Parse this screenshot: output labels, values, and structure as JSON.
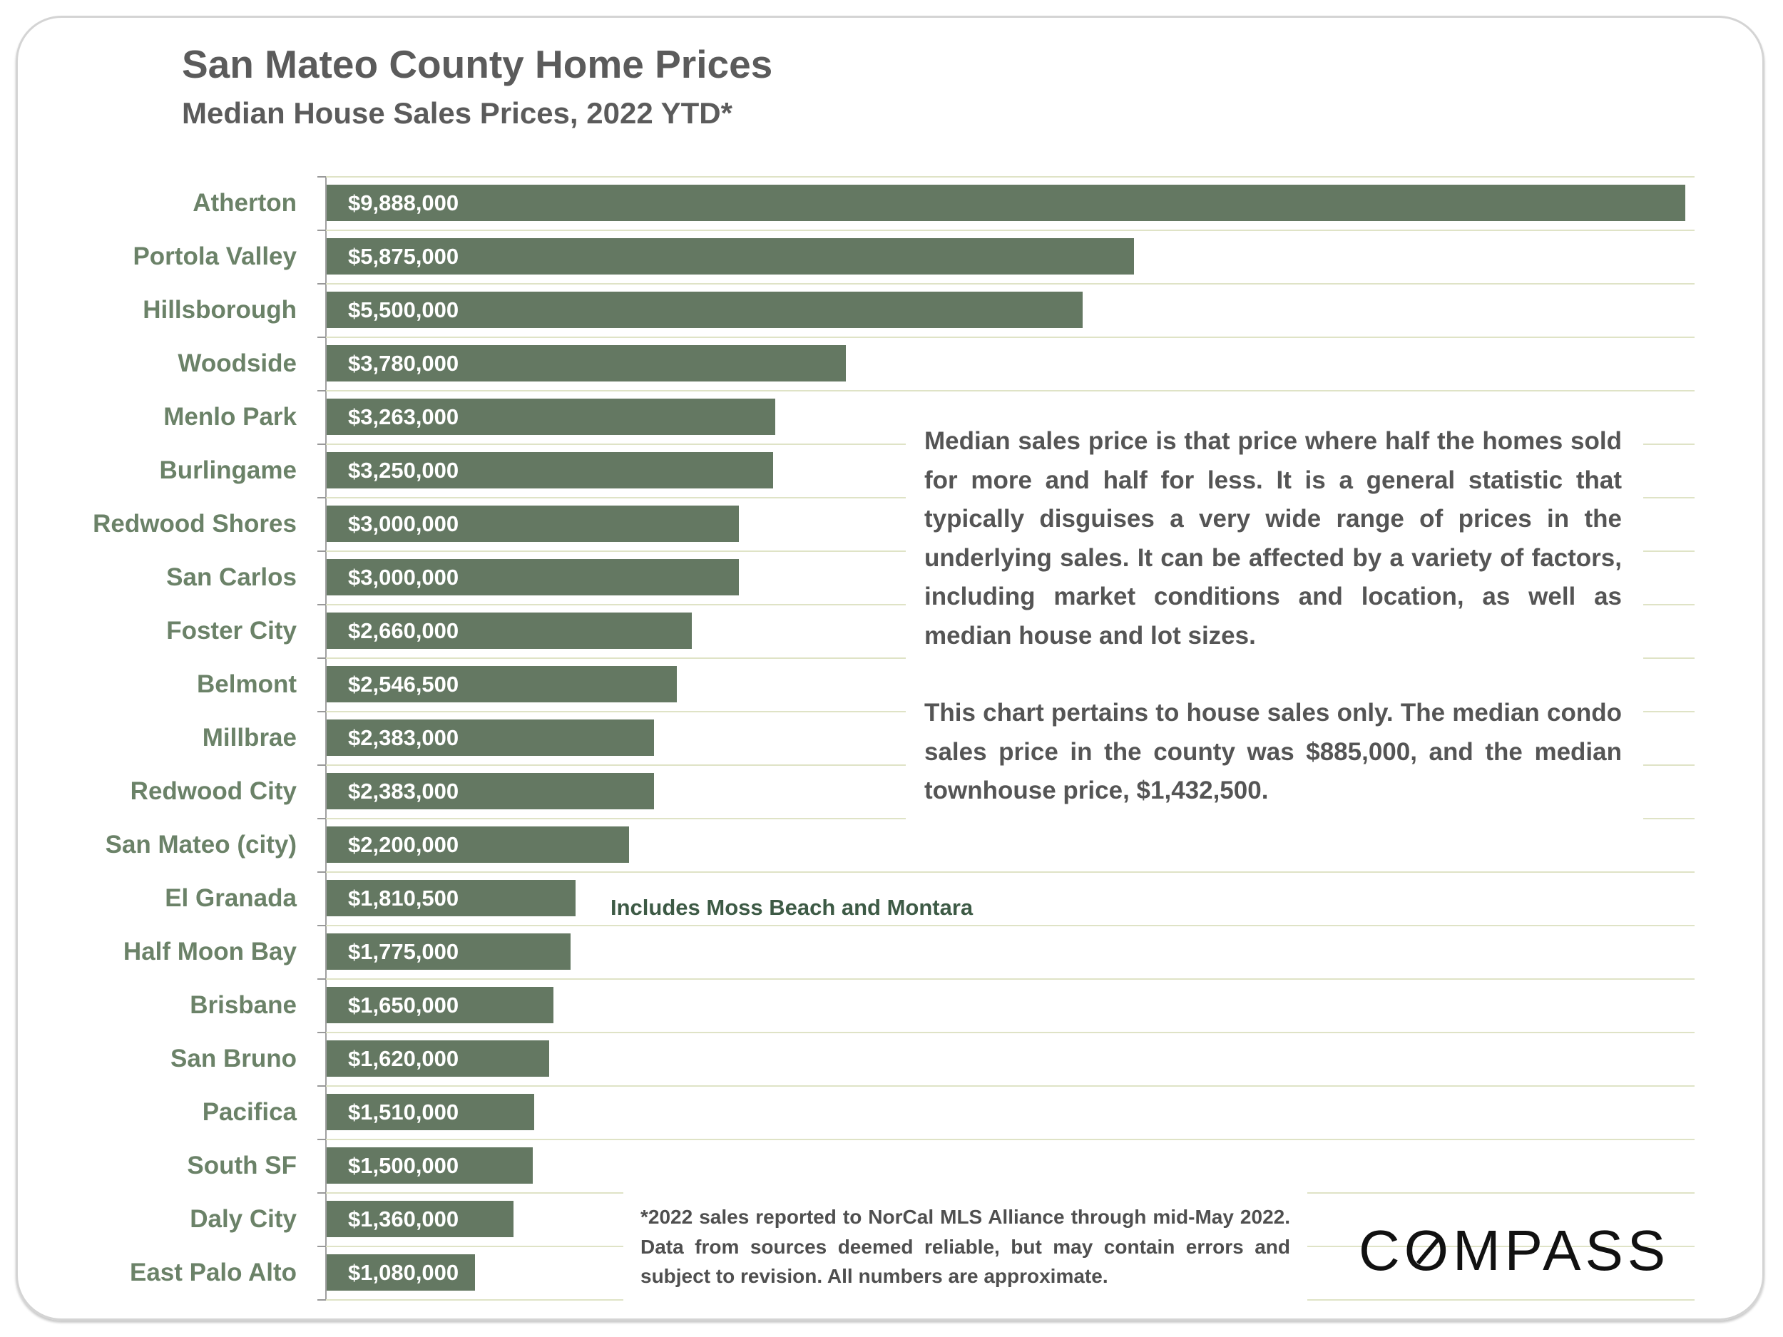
{
  "chart_data": {
    "type": "bar",
    "orientation": "horizontal",
    "title": "San Mateo County Home Prices",
    "subtitle": "Median House Sales Prices, 2022 YTD*",
    "xlabel": "",
    "ylabel": "",
    "xlim": [
      0,
      9888000
    ],
    "grid": true,
    "categories": [
      "Atherton",
      "Portola Valley",
      "Hillsborough",
      "Woodside",
      "Menlo Park",
      "Burlingame",
      "Redwood Shores",
      "San Carlos",
      "Foster City",
      "Belmont",
      "Millbrae",
      "Redwood City",
      "San Mateo (city)",
      "El Granada",
      "Half Moon Bay",
      "Brisbane",
      "San Bruno",
      "Pacifica",
      "South SF",
      "Daly City",
      "East Palo Alto"
    ],
    "values": [
      9888000,
      5875000,
      5500000,
      3780000,
      3263000,
      3250000,
      3000000,
      3000000,
      2660000,
      2546500,
      2383000,
      2383000,
      2200000,
      1810500,
      1775000,
      1650000,
      1620000,
      1510000,
      1500000,
      1360000,
      1080000
    ],
    "data_labels": [
      "$9,888,000",
      "$5,875,000",
      "$5,500,000",
      "$3,780,000",
      "$3,263,000",
      "$3,250,000",
      "$3,000,000",
      "$3,000,000",
      "$2,660,000",
      "$2,546,500",
      "$2,383,000",
      "$2,383,000",
      "$2,200,000",
      "$1,810,500",
      "$1,775,000",
      "$1,650,000",
      "$1,620,000",
      "$1,510,000",
      "$1,500,000",
      "$1,360,000",
      "$1,080,000"
    ],
    "annotations": {
      "el_granada": "Includes Moss Beach and Montara"
    },
    "bar_color": "#647862"
  },
  "note": {
    "p1": "Median sales price is that price where half the homes sold for more and half for less. It is a general statistic that typically disguises a very wide range of prices in the underlying sales. It can be affected by a variety of factors, including market conditions and location, as well as median house and lot sizes.",
    "p2": "This chart pertains to house sales only. The median condo sales price in the county was $885,000, and the median townhouse price, $1,432,500."
  },
  "footnote": "*2022 sales reported to NorCal MLS Alliance through mid-May 2022. Data from sources deemed reliable, but may contain errors and subject to revision. All numbers are approximate.",
  "logo": "COMPASS"
}
